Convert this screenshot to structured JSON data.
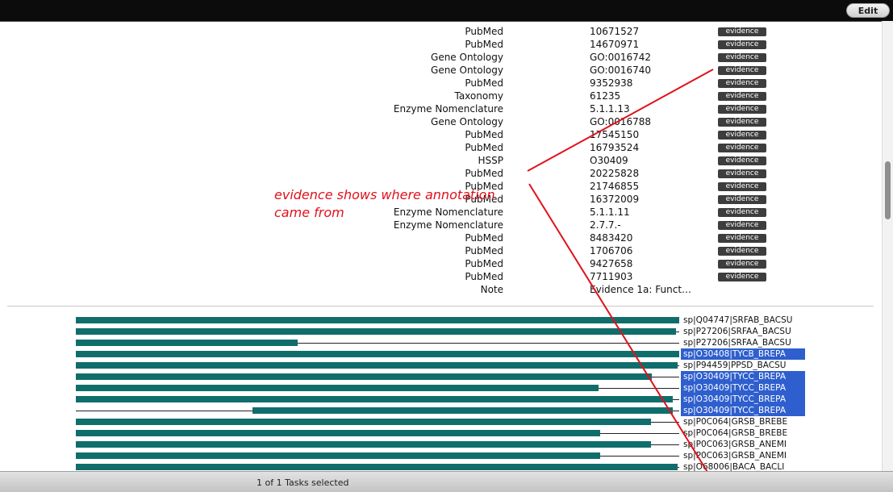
{
  "toolbar": {
    "edit_label": "Edit"
  },
  "annotations": [
    {
      "type": "PubMed",
      "value": "10671527",
      "evidence": "evidence"
    },
    {
      "type": "PubMed",
      "value": "14670971",
      "evidence": "evidence"
    },
    {
      "type": "Gene Ontology",
      "value": "GO:0016742",
      "evidence": "evidence"
    },
    {
      "type": "Gene Ontology",
      "value": "GO:0016740",
      "evidence": "evidence"
    },
    {
      "type": "PubMed",
      "value": "9352938",
      "evidence": "evidence"
    },
    {
      "type": "Taxonomy",
      "value": "61235",
      "evidence": "evidence"
    },
    {
      "type": "Enzyme Nomenclature",
      "value": "5.1.1.13",
      "evidence": "evidence"
    },
    {
      "type": "Gene Ontology",
      "value": "GO:0016788",
      "evidence": "evidence"
    },
    {
      "type": "PubMed",
      "value": "17545150",
      "evidence": "evidence"
    },
    {
      "type": "PubMed",
      "value": "16793524",
      "evidence": "evidence"
    },
    {
      "type": "HSSP",
      "value": "O30409",
      "evidence": "evidence"
    },
    {
      "type": "PubMed",
      "value": "20225828",
      "evidence": "evidence"
    },
    {
      "type": "PubMed",
      "value": "21746855",
      "evidence": "evidence"
    },
    {
      "type": "PubMed",
      "value": "16372009",
      "evidence": "evidence"
    },
    {
      "type": "Enzyme Nomenclature",
      "value": "5.1.1.11",
      "evidence": "evidence"
    },
    {
      "type": "Enzyme Nomenclature",
      "value": "2.7.7.-",
      "evidence": "evidence"
    },
    {
      "type": "PubMed",
      "value": "8483420",
      "evidence": "evidence"
    },
    {
      "type": "PubMed",
      "value": "1706706",
      "evidence": "evidence"
    },
    {
      "type": "PubMed",
      "value": "9427658",
      "evidence": "evidence"
    },
    {
      "type": "PubMed",
      "value": "7711903",
      "evidence": "evidence"
    },
    {
      "type": "Note",
      "value": "Evidence 1a: Funct…",
      "evidence": ""
    }
  ],
  "sequences": [
    {
      "label": "sp|Q04747|SRFAB_BACSU",
      "selected": false,
      "bar_start": 0.0,
      "bar_end": 1.0,
      "line_start": 0.0
    },
    {
      "label": "sp|P27206|SRFAA_BACSU",
      "selected": false,
      "bar_start": 0.0,
      "bar_end": 0.995,
      "line_start": 0.0
    },
    {
      "label": "sp|P27206|SRFAA_BACSU",
      "selected": false,
      "bar_start": 0.0,
      "bar_end": 0.367,
      "line_start": 0.0
    },
    {
      "label": "sp|O30408|TYCB_BREPA",
      "selected": true,
      "bar_start": 0.0,
      "bar_end": 1.0,
      "line_start": 0.0
    },
    {
      "label": "sp|P94459|PPSD_BACSU",
      "selected": false,
      "bar_start": 0.0,
      "bar_end": 0.997,
      "line_start": 0.0
    },
    {
      "label": "sp|O30409|TYCC_BREPA",
      "selected": true,
      "bar_start": 0.0,
      "bar_end": 0.954,
      "line_start": 0.0
    },
    {
      "label": "sp|O30409|TYCC_BREPA",
      "selected": true,
      "bar_start": 0.0,
      "bar_end": 0.866,
      "line_start": 0.0
    },
    {
      "label": "sp|O30409|TYCC_BREPA",
      "selected": true,
      "bar_start": 0.0,
      "bar_end": 0.989,
      "line_start": 0.0
    },
    {
      "label": "sp|O30409|TYCC_BREPA",
      "selected": true,
      "bar_start": 0.293,
      "bar_end": 0.989,
      "line_start": 0.0
    },
    {
      "label": "sp|P0C064|GRSB_BREBE",
      "selected": false,
      "bar_start": 0.0,
      "bar_end": 0.953,
      "line_start": 0.0
    },
    {
      "label": "sp|P0C064|GRSB_BREBE",
      "selected": false,
      "bar_start": 0.0,
      "bar_end": 0.869,
      "line_start": 0.0
    },
    {
      "label": "sp|P0C063|GRSB_ANEMI",
      "selected": false,
      "bar_start": 0.0,
      "bar_end": 0.953,
      "line_start": 0.0
    },
    {
      "label": "sp|P0C063|GRSB_ANEMI",
      "selected": false,
      "bar_start": 0.0,
      "bar_end": 0.869,
      "line_start": 0.0
    },
    {
      "label": "sp|O68006|BACA_BACLI",
      "selected": false,
      "bar_start": 0.0,
      "bar_end": 0.997,
      "line_start": 0.0
    }
  ],
  "note": {
    "line1": "evidence shows where annotation",
    "line2": "came from",
    "color": "#e0111b"
  },
  "status": {
    "text": "1 of 1 Tasks selected"
  },
  "colors": {
    "bar": "#0f6e6b",
    "selection": "#2f5fce",
    "annotation": "#e0111b"
  }
}
